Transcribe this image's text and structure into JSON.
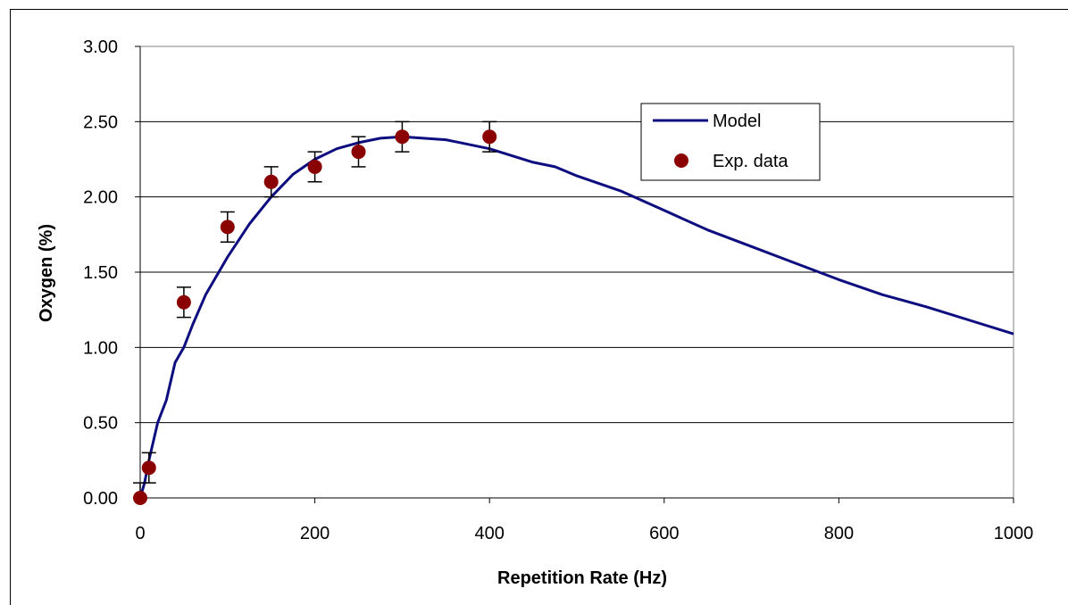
{
  "chart_data": {
    "type": "line",
    "xlabel": "Repetition Rate (Hz)",
    "ylabel": "Oxygen (%)",
    "xlim": [
      0,
      1000
    ],
    "ylim": [
      0,
      3
    ],
    "x_ticks": [
      "0",
      "200",
      "400",
      "600",
      "800",
      "1000"
    ],
    "y_ticks": [
      "0.00",
      "0.50",
      "1.00",
      "1.50",
      "2.00",
      "2.50",
      "3.00"
    ],
    "grid": "horizontal",
    "legend_position": "top-right",
    "colors": {
      "model": "#0d0d80",
      "data": "#8b0000"
    },
    "series": [
      {
        "name": "Model",
        "kind": "line",
        "x": [
          0,
          5,
          10,
          20,
          30,
          40,
          50,
          60,
          75,
          100,
          125,
          150,
          175,
          200,
          225,
          250,
          275,
          300,
          350,
          400,
          450,
          475,
          500,
          550,
          600,
          650,
          700,
          750,
          800,
          850,
          900,
          950,
          1000
        ],
        "y": [
          0.0,
          0.1,
          0.25,
          0.5,
          0.65,
          0.9,
          1.0,
          1.15,
          1.35,
          1.6,
          1.82,
          2.0,
          2.15,
          2.25,
          2.32,
          2.36,
          2.39,
          2.4,
          2.38,
          2.32,
          2.23,
          2.2,
          2.14,
          2.04,
          1.91,
          1.78,
          1.67,
          1.56,
          1.45,
          1.35,
          1.27,
          1.18,
          1.09
        ]
      },
      {
        "name": "Exp. data",
        "kind": "scatter",
        "x": [
          0,
          10,
          50,
          100,
          150,
          200,
          250,
          300,
          400
        ],
        "y": [
          0.0,
          0.2,
          1.3,
          1.8,
          2.1,
          2.2,
          2.3,
          2.4,
          2.4
        ],
        "error": [
          0.1,
          0.1,
          0.1,
          0.1,
          0.1,
          0.1,
          0.1,
          0.1,
          0.1
        ]
      }
    ]
  }
}
